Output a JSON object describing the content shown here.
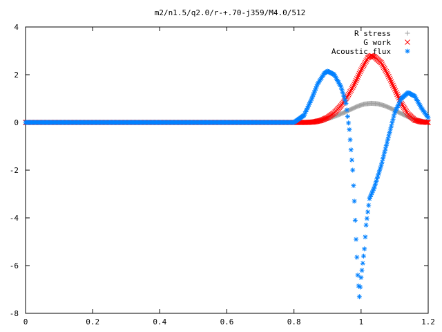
{
  "chart_data": {
    "type": "scatter",
    "title": "m2/n1.5/q2.0/r-+.70-j359/M4.0/512",
    "xlabel": "",
    "ylabel": "",
    "xlim": [
      0,
      1.2
    ],
    "ylim": [
      -8,
      4
    ],
    "x_ticks": [
      "0",
      "0.2",
      "0.4",
      "0.6",
      "0.8",
      "1",
      "1.2"
    ],
    "y_ticks": [
      "4",
      "2",
      "0",
      "-2",
      "-4",
      "-6",
      "-8"
    ],
    "grid": false,
    "legend_position": "top-right",
    "series": [
      {
        "name": "R stress",
        "marker": "+",
        "color": "#a0a0a0",
        "points": [
          [
            0.0,
            0.0
          ],
          [
            0.1,
            0.0
          ],
          [
            0.2,
            0.0
          ],
          [
            0.3,
            0.0
          ],
          [
            0.4,
            0.0
          ],
          [
            0.5,
            0.0
          ],
          [
            0.6,
            0.0
          ],
          [
            0.7,
            0.0
          ],
          [
            0.8,
            0.0
          ],
          [
            0.83,
            0.0
          ],
          [
            0.85,
            0.02
          ],
          [
            0.87,
            0.06
          ],
          [
            0.89,
            0.12
          ],
          [
            0.91,
            0.2
          ],
          [
            0.93,
            0.3
          ],
          [
            0.95,
            0.42
          ],
          [
            0.97,
            0.55
          ],
          [
            0.99,
            0.68
          ],
          [
            1.01,
            0.77
          ],
          [
            1.03,
            0.8
          ],
          [
            1.05,
            0.78
          ],
          [
            1.07,
            0.7
          ],
          [
            1.09,
            0.58
          ],
          [
            1.11,
            0.44
          ],
          [
            1.13,
            0.3
          ],
          [
            1.15,
            0.17
          ],
          [
            1.17,
            0.08
          ],
          [
            1.19,
            0.03
          ],
          [
            1.2,
            0.02
          ]
        ]
      },
      {
        "name": "G work",
        "marker": "x",
        "color": "#ff0000",
        "points": [
          [
            0.0,
            0.0
          ],
          [
            0.1,
            0.0
          ],
          [
            0.2,
            0.0
          ],
          [
            0.3,
            0.0
          ],
          [
            0.4,
            0.0
          ],
          [
            0.5,
            0.0
          ],
          [
            0.6,
            0.0
          ],
          [
            0.7,
            0.0
          ],
          [
            0.8,
            0.0
          ],
          [
            0.84,
            0.0
          ],
          [
            0.86,
            0.02
          ],
          [
            0.88,
            0.08
          ],
          [
            0.9,
            0.2
          ],
          [
            0.92,
            0.4
          ],
          [
            0.94,
            0.7
          ],
          [
            0.96,
            1.1
          ],
          [
            0.98,
            1.6
          ],
          [
            1.0,
            2.2
          ],
          [
            1.02,
            2.7
          ],
          [
            1.03,
            2.8
          ],
          [
            1.04,
            2.75
          ],
          [
            1.06,
            2.5
          ],
          [
            1.08,
            2.0
          ],
          [
            1.1,
            1.4
          ],
          [
            1.12,
            0.8
          ],
          [
            1.14,
            0.35
          ],
          [
            1.16,
            0.1
          ],
          [
            1.18,
            0.02
          ],
          [
            1.2,
            0.0
          ]
        ]
      },
      {
        "name": "Acoustic flux",
        "marker": "*",
        "color": "#0080ff",
        "points": [
          [
            0.0,
            0.0
          ],
          [
            0.1,
            0.0
          ],
          [
            0.2,
            0.0
          ],
          [
            0.3,
            0.0
          ],
          [
            0.4,
            0.0
          ],
          [
            0.5,
            0.0
          ],
          [
            0.6,
            0.0
          ],
          [
            0.7,
            0.0
          ],
          [
            0.8,
            0.0
          ],
          [
            0.83,
            0.3
          ],
          [
            0.85,
            0.9
          ],
          [
            0.87,
            1.6
          ],
          [
            0.89,
            2.05
          ],
          [
            0.9,
            2.15
          ],
          [
            0.92,
            2.0
          ],
          [
            0.94,
            1.5
          ],
          [
            0.955,
            0.8
          ],
          [
            0.965,
            -0.3
          ],
          [
            0.975,
            -2.0
          ],
          [
            0.98,
            -3.3
          ],
          [
            0.985,
            -4.9
          ],
          [
            0.99,
            -6.4
          ],
          [
            0.995,
            -7.3
          ],
          [
            1.0,
            -6.5
          ],
          [
            1.01,
            -5.3
          ],
          [
            1.015,
            -4.3
          ],
          [
            1.025,
            -3.2
          ],
          [
            1.04,
            -2.7
          ],
          [
            1.06,
            -1.8
          ],
          [
            1.08,
            -0.7
          ],
          [
            1.1,
            0.4
          ],
          [
            1.12,
            1.0
          ],
          [
            1.14,
            1.25
          ],
          [
            1.16,
            1.1
          ],
          [
            1.18,
            0.6
          ],
          [
            1.2,
            0.2
          ]
        ]
      }
    ]
  }
}
